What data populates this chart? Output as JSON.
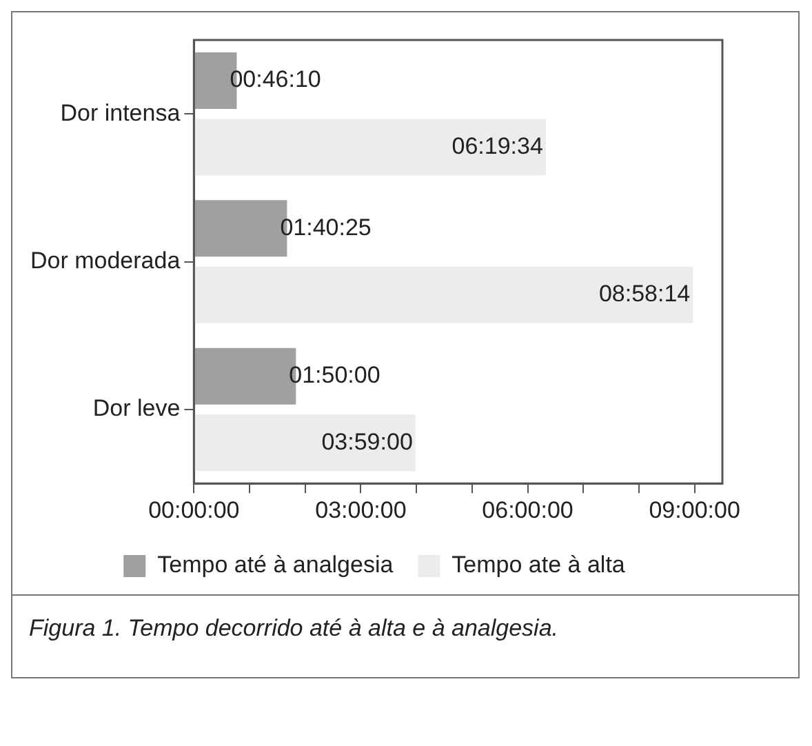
{
  "chart_data": {
    "type": "bar",
    "orientation": "horizontal",
    "categories": [
      "Dor intensa",
      "Dor moderada",
      "Dor leve"
    ],
    "series": [
      {
        "name": "Tempo até à analgesia",
        "color": "#a0a0a0",
        "values": [
          2770,
          6025,
          6600
        ],
        "value_labels": [
          "00:46:10",
          "01:40:25",
          "01:50:00"
        ]
      },
      {
        "name": "Tempo ate à alta",
        "color": "#ececec",
        "values": [
          22774,
          32294,
          14340
        ],
        "value_labels": [
          "06:19:34",
          "08:58:14",
          "03:59:00"
        ]
      }
    ],
    "xlim": [
      0,
      34200
    ],
    "xticks": [
      {
        "value": 0,
        "label": "00:00:00"
      },
      {
        "value": 3600,
        "label": null
      },
      {
        "value": 7200,
        "label": null
      },
      {
        "value": 10800,
        "label": "03:00:00"
      },
      {
        "value": 14400,
        "label": null
      },
      {
        "value": 18000,
        "label": null
      },
      {
        "value": 21600,
        "label": "06:00:00"
      },
      {
        "value": 25200,
        "label": null
      },
      {
        "value": 28800,
        "label": null
      },
      {
        "value": 32400,
        "label": "09:00:00"
      }
    ],
    "grid": false,
    "legend": "bottom",
    "annotations": [
      "Figura 1. Tempo decorrido até à alta e à analgesia."
    ]
  }
}
